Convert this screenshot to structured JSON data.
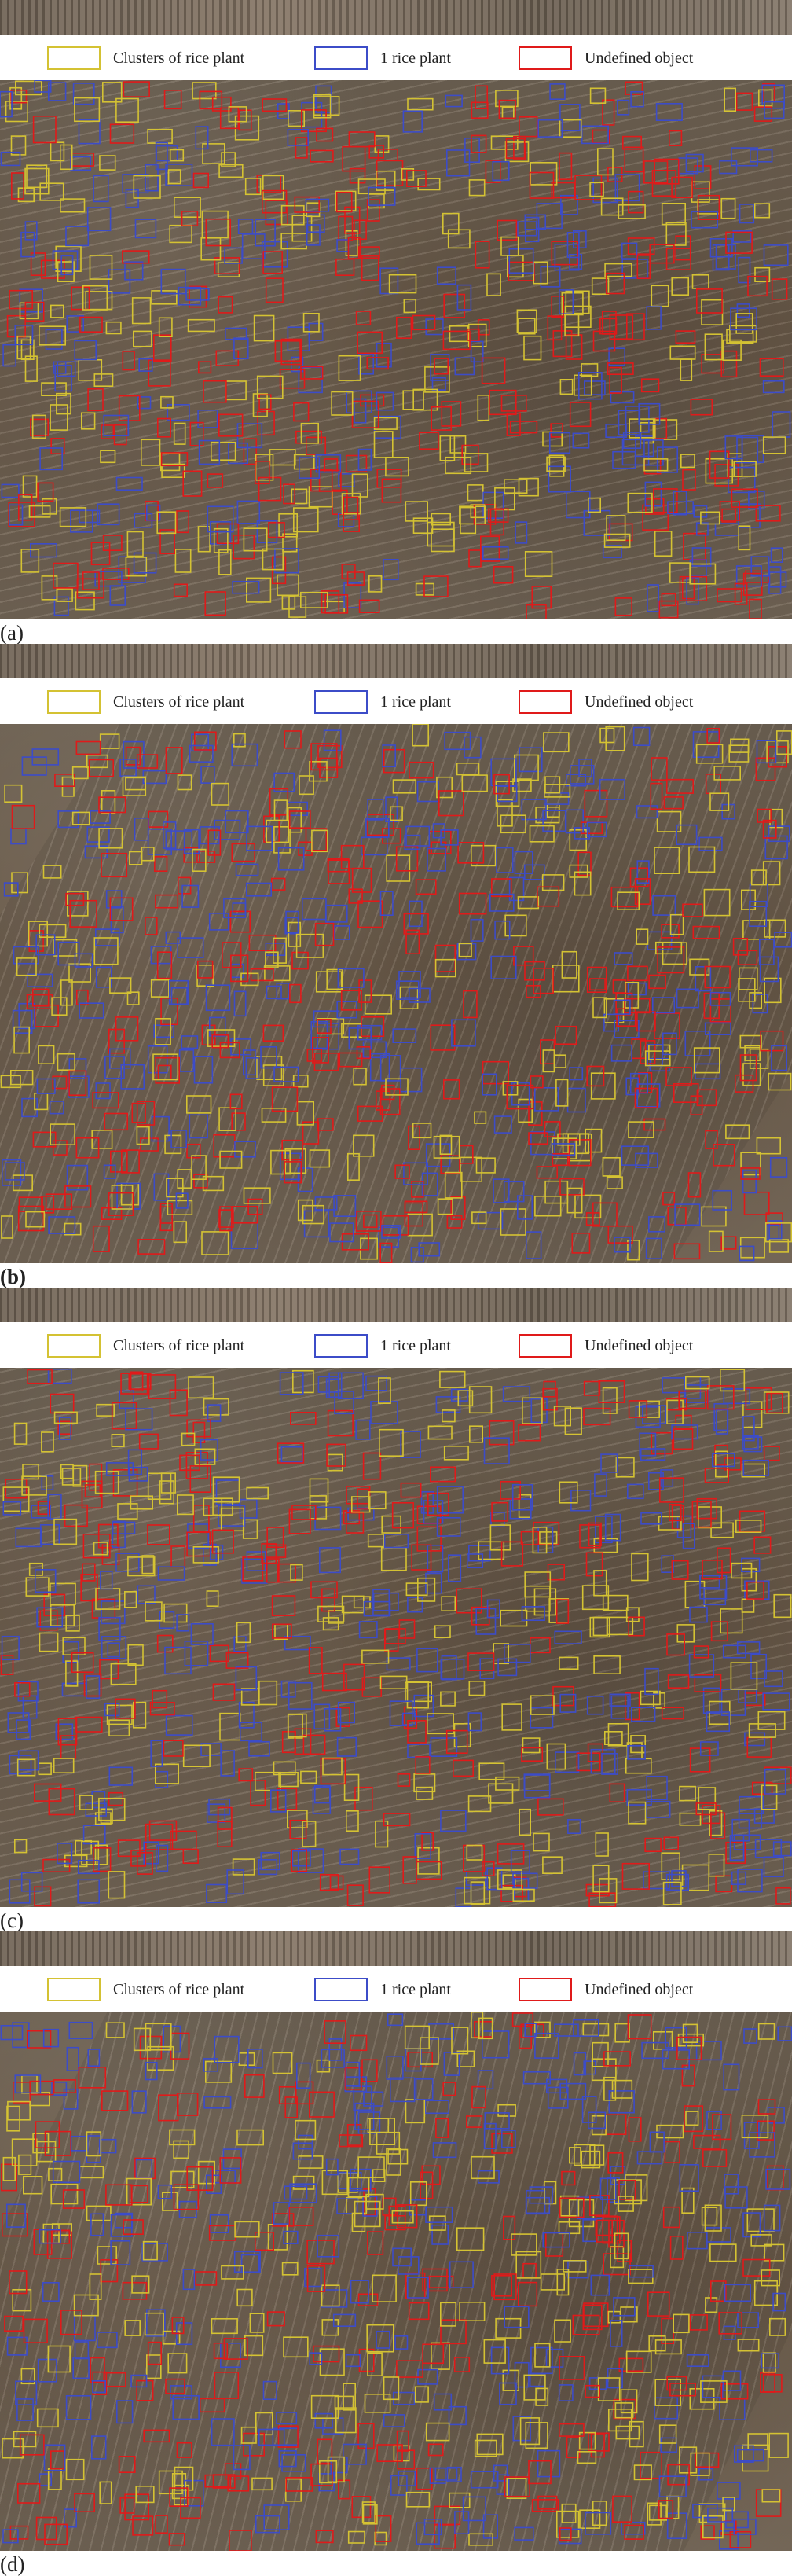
{
  "legend": {
    "clusters_label": "Clusters of rice plant",
    "single_label": "1 rice plant",
    "undefined_label": "Undefined object",
    "clusters_color": "#d4c233",
    "single_color": "#3c4cc8",
    "undefined_color": "#e01a1a"
  },
  "panels": [
    {
      "caption": "(a)"
    },
    {
      "caption": "(b)"
    },
    {
      "caption": "(c)"
    },
    {
      "caption": "(d)"
    }
  ]
}
